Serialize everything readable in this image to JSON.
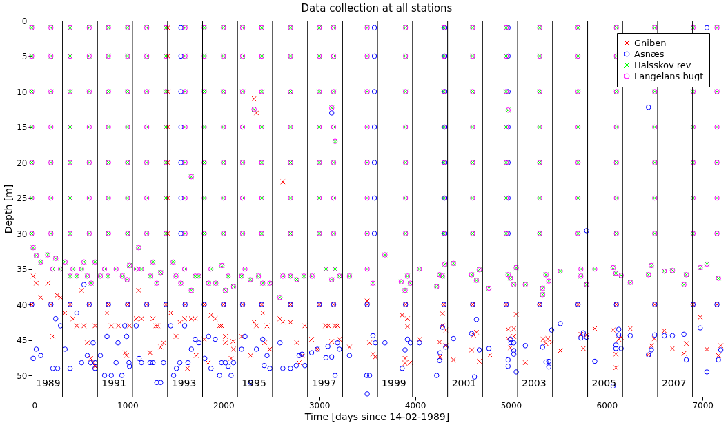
{
  "chart_data": {
    "type": "scatter",
    "title": "Data collection at all stations",
    "xlabel": "Time [days since 14-02-1989]",
    "ylabel": "Depth [m]",
    "xlim": [
      0,
      7200
    ],
    "xticks": [
      0,
      1000,
      2000,
      3000,
      4000,
      5000,
      6000,
      7000
    ],
    "ylim": [
      53,
      0
    ],
    "yticks": [
      0,
      5,
      10,
      15,
      20,
      25,
      30,
      35,
      40,
      45,
      50
    ],
    "grid": false,
    "legend": "top right",
    "series": [
      {
        "name": "Gniben",
        "color": "#ff0000",
        "marker": "cross",
        "x": [
          0,
          200,
          400,
          600,
          800,
          1000,
          1200,
          1400,
          1600,
          1800,
          2000,
          2200,
          2400,
          2700,
          3000,
          3150,
          3500,
          3900,
          4300,
          4600,
          4950,
          5300,
          5700,
          6100,
          6500,
          6900,
          7150,
          1420,
          1420,
          1420,
          1420,
          1420,
          1420,
          1420,
          15,
          47,
          94,
          167,
          220,
          265,
          300,
          348,
          430,
          470,
          520,
          545,
          580,
          615,
          640,
          660,
          660,
          785,
          830,
          905,
          975,
          990,
          1020,
          1090,
          1115,
          1145,
          1265,
          1295,
          1315,
          1345,
          1375,
          1235,
          1450,
          1505,
          1545,
          1595,
          1625,
          1665,
          1705,
          1715,
          1800,
          1840,
          1870,
          1915,
          1960,
          1980,
          2020,
          2020,
          2080,
          2100,
          2105,
          2190,
          2285,
          2320,
          2345,
          2320,
          2345,
          2410,
          2455,
          2430,
          2485,
          2590,
          2620,
          2700,
          2620,
          2765,
          2790,
          2820,
          2850,
          2920,
          2980,
          3065,
          3095,
          3130,
          3165,
          3190,
          3210,
          3315,
          3500,
          3525,
          3560,
          3585,
          3865,
          3920,
          3920,
          3895,
          3895,
          3950,
          4045,
          4255,
          4260,
          4285,
          4285,
          4320,
          4320,
          4400,
          4590,
          4610,
          4640,
          4670,
          4782,
          4970,
          4970,
          4995,
          5030,
          5030,
          5055,
          5150,
          5335,
          5365,
          5385,
          5425,
          5515,
          5730,
          5755,
          5790,
          5875,
          6065,
          6095,
          6095,
          6125,
          6150,
          6245,
          6435,
          6465,
          6495,
          6600,
          6685,
          6805,
          6830,
          6975,
          7045,
          7165,
          7190
        ],
        "values": [
          40,
          40,
          40,
          40,
          40,
          40,
          40,
          40,
          40,
          40,
          40,
          40,
          40,
          40,
          40,
          40,
          40,
          40,
          40,
          40,
          40,
          40,
          40,
          40,
          40,
          40,
          40,
          1,
          5,
          10,
          15,
          20,
          25,
          30,
          36,
          37,
          39,
          37,
          44.5,
          38.7,
          39,
          41.2,
          42,
          43,
          38,
          43,
          45.4,
          47.6,
          48.2,
          48.7,
          43,
          41.2,
          43,
          43,
          46.8,
          47.2,
          43,
          42,
          38,
          42,
          42,
          43,
          43,
          46,
          45.4,
          46.8,
          41.2,
          44.5,
          42.5,
          42,
          49,
          42,
          42,
          47.2,
          44.9,
          48.2,
          41.5,
          42,
          43,
          43,
          44.5,
          45.4,
          47.6,
          45.2,
          46.3,
          44.5,
          47.2,
          42.5,
          43,
          11,
          13,
          41.2,
          43,
          45.4,
          46.3,
          42,
          42.5,
          42.5,
          22.7,
          45.4,
          48.2,
          47.2,
          43,
          44.9,
          46.3,
          43,
          43,
          45.2,
          43,
          43,
          44.9,
          46,
          39.5,
          45.4,
          47,
          47.4,
          41.5,
          42,
          43.1,
          47.6,
          48.3,
          48.2,
          44.9,
          45.3,
          47.4,
          41.3,
          43,
          43.6,
          45.8,
          47.8,
          46.4,
          44.3,
          43.9,
          48,
          47.1,
          43.5,
          44.8,
          46.1,
          43.4,
          44.5,
          41.4,
          48.2,
          44.9,
          45.5,
          44.8,
          45.3,
          46.5,
          44.2,
          46.2,
          44.3,
          43.4,
          43.6,
          47,
          48.9,
          44.9,
          44.6,
          43.4,
          47.1,
          45.8,
          44.8,
          43.7,
          46.2,
          46.9,
          45.5,
          41.8,
          46.3,
          47.2,
          45.8
        ]
      },
      {
        "name": "Asnæs",
        "color": "#0000ff",
        "marker": "circle",
        "x": [
          0,
          200,
          400,
          600,
          800,
          1000,
          1200,
          1400,
          1600,
          1800,
          2000,
          2200,
          2400,
          2700,
          3000,
          3150,
          3500,
          3900,
          4300,
          4600,
          4950,
          5300,
          5700,
          6100,
          6500,
          6900,
          7150,
          1556,
          1556,
          1556,
          1556,
          1556,
          1556,
          1556,
          3575,
          3575,
          3575,
          3575,
          3575,
          3575,
          3575,
          4310,
          4310,
          4310,
          4310,
          4310,
          4310,
          4310,
          4970,
          4970,
          4970,
          4970,
          4970,
          4970,
          4970,
          3130,
          6435,
          5790,
          7045,
          15,
          47,
          94,
          220,
          270,
          250,
          300,
          348,
          400,
          470,
          520,
          545,
          580,
          615,
          640,
          660,
          660,
          716,
          760,
          785,
          830,
          880,
          900,
          940,
          970,
          990,
          1015,
          1020,
          1090,
          1120,
          1145,
          1235,
          1265,
          1305,
          1345,
          1375,
          1450,
          1480,
          1510,
          1545,
          1595,
          1630,
          1665,
          1705,
          1745,
          1805,
          1845,
          1870,
          1915,
          1960,
          1980,
          2020,
          2050,
          2080,
          2105,
          2190,
          2225,
          2285,
          2345,
          2410,
          2425,
          2455,
          2485,
          2590,
          2620,
          2700,
          2760,
          2790,
          2820,
          2850,
          2920,
          2980,
          3070,
          3090,
          3130,
          3165,
          3190,
          3210,
          3315,
          3495,
          3525,
          3500,
          3560,
          3585,
          3685,
          3865,
          3895,
          3920,
          3950,
          4045,
          4225,
          4255,
          4260,
          4285,
          4320,
          4400,
          4590,
          4620,
          4640,
          4670,
          4770,
          4970,
          4970,
          4995,
          5000,
          5030,
          5030,
          5030,
          5055,
          5150,
          5330,
          5365,
          5395,
          5395,
          5425,
          5515,
          5730,
          5755,
          5790,
          5875,
          6065,
          6095,
          6095,
          6125,
          6125,
          6150,
          6245,
          6435,
          6465,
          6500,
          6600,
          6685,
          6805,
          6830,
          6975,
          7045,
          7165,
          7190
        ],
        "values": [
          40,
          40,
          40,
          40,
          40,
          40,
          40,
          40,
          40,
          40,
          40,
          40,
          40,
          40,
          40,
          40,
          40,
          40,
          40,
          40,
          40,
          40,
          40,
          40,
          40,
          40,
          40,
          1,
          5,
          10,
          15,
          20,
          25,
          30,
          1,
          5,
          10,
          15,
          20,
          25,
          30,
          1,
          5,
          10,
          15,
          20,
          25,
          30,
          1,
          5,
          10,
          15,
          20,
          25,
          30,
          13,
          12.2,
          29.6,
          1,
          47.6,
          46.3,
          47.2,
          49,
          49,
          42,
          43,
          46.3,
          49,
          41.2,
          48.2,
          37.2,
          47.2,
          48.2,
          45.4,
          48.2,
          49,
          47.2,
          50,
          44.5,
          50,
          48.2,
          45.4,
          50,
          43,
          44.5,
          48.2,
          48.7,
          43,
          47.6,
          48.2,
          48.2,
          48.2,
          51,
          51,
          48.2,
          43,
          50,
          49,
          48.2,
          43,
          48.2,
          46.3,
          44.9,
          45.4,
          47.6,
          44.5,
          49,
          44.9,
          50,
          48.2,
          48.2,
          48.7,
          50,
          48.2,
          46.3,
          44.5,
          51,
          46.3,
          44.9,
          48.6,
          47.2,
          49,
          45.4,
          49,
          49,
          48.6,
          47.2,
          47,
          48.6,
          46.8,
          46.3,
          47.5,
          45.9,
          47.4,
          50,
          45.4,
          46.3,
          47.2,
          50,
          50,
          52.6,
          44.4,
          45.4,
          45.4,
          49,
          46.4,
          44.9,
          45.4,
          45.4,
          50,
          47.9,
          46.8,
          43.2,
          46,
          44.8,
          44.1,
          50.2,
          42.1,
          46.4,
          46.2,
          47.8,
          48.7,
          44.9,
          45.4,
          45.4,
          46.5,
          47,
          49.5,
          45.8,
          46,
          48.1,
          48,
          48.8,
          43.6,
          42.7,
          44.7,
          44,
          44.6,
          48,
          51.5,
          45.7,
          46.2,
          43.5,
          44.3,
          46.2,
          44.4,
          47.1,
          46.4,
          44.3,
          44.4,
          44.4,
          44.2,
          47.8,
          43.3,
          49.5,
          47.8,
          46.4
        ]
      },
      {
        "name": "Halsskov rev",
        "color": "#00ff00",
        "marker": "cross",
        "x": [
          0,
          200,
          400,
          600,
          800,
          1000,
          1200,
          1400,
          1600,
          1800,
          2000,
          2200,
          2400,
          2700,
          3000,
          3150,
          3500,
          3900,
          4300,
          4600,
          4950,
          5300,
          5700,
          6100,
          6500,
          6900,
          7150,
          0,
          200,
          400,
          600,
          800,
          1000,
          1200,
          1400,
          1600,
          1800,
          2000,
          2200,
          2400,
          2700,
          3000,
          3150,
          3500,
          3900,
          4300,
          4600,
          4950,
          5300,
          5700,
          6100,
          0,
          200,
          400,
          600,
          800,
          1000,
          1200,
          1400,
          1600,
          1800,
          2000,
          2200,
          2400,
          2700,
          3000,
          3150,
          3500,
          3900,
          4300,
          4600,
          4950,
          5300,
          5700,
          6100,
          6500,
          6900,
          7150,
          0,
          200,
          400,
          600,
          800,
          1000,
          1200,
          1400,
          1600,
          1800,
          2000,
          2200,
          2400,
          2700,
          3000,
          3150,
          3500,
          3900,
          4300,
          4600,
          4950,
          5300,
          5700,
          6100,
          6500,
          6900,
          7150,
          0,
          200,
          400,
          600,
          800,
          1000,
          1200,
          1400,
          1600,
          1800,
          2000,
          2200,
          2400,
          2700,
          3000,
          3150,
          3500,
          3900,
          4300,
          4600,
          4950,
          5300,
          5700,
          6100,
          6500,
          6900,
          7150,
          0,
          200,
          400,
          600,
          800,
          1000,
          1200,
          1400,
          1600,
          1800,
          2000,
          2200,
          2400,
          2700,
          3000,
          3150,
          3500,
          3900,
          4300,
          4600,
          4950,
          5300,
          5700,
          6100,
          6500,
          6900,
          7150,
          0,
          200,
          400,
          600,
          800,
          1000,
          1200,
          1400,
          1600,
          1800,
          2000,
          2200,
          2400,
          2700,
          3000,
          3150,
          3500,
          3900,
          4300,
          4600,
          4950,
          5300,
          5700,
          6100,
          6500,
          6900,
          7150,
          15,
          47,
          94,
          167,
          220,
          250,
          300,
          348,
          400,
          430,
          470,
          520,
          545,
          580,
          620,
          660,
          716,
          760,
          795,
          880,
          945,
          995,
          1020,
          1090,
          1115,
          1145,
          1235,
          1265,
          1305,
          1345,
          1475,
          1505,
          1555,
          1595,
          1665,
          1665,
          1705,
          1745,
          1845,
          1870,
          1920,
          1985,
          2020,
          2050,
          2105,
          2190,
          2225,
          2280,
          2320,
          2366,
          2410,
          2485,
          2590,
          2620,
          2700,
          2765,
          2840,
          2925,
          3070,
          3130,
          3165,
          3210,
          3130,
          3165,
          3315,
          3500,
          3560,
          3685,
          3855,
          3895,
          3920,
          3950,
          4045,
          4225,
          4255,
          4285,
          4310,
          4400,
          4590,
          4640,
          4670,
          4770,
          4970,
          4995,
          5030,
          5055,
          4970,
          5150,
          5330,
          5330,
          5365,
          5395,
          5515,
          5730,
          5730,
          5790,
          5875,
          6065,
          6095,
          6150,
          6245,
          6435,
          6465,
          6600,
          6685,
          6805,
          6830,
          6975,
          7045,
          7165
        ],
        "values": [
          1,
          1,
          1,
          1,
          1,
          1,
          1,
          1,
          1,
          1,
          1,
          1,
          1,
          1,
          1,
          1,
          1,
          1,
          1,
          1,
          1,
          1,
          1,
          1,
          1,
          1,
          1,
          5,
          5,
          5,
          5,
          5,
          5,
          5,
          5,
          5,
          5,
          5,
          5,
          5,
          5,
          5,
          5,
          5,
          5,
          5,
          5,
          5,
          5,
          5,
          5,
          10,
          10,
          10,
          10,
          10,
          10,
          10,
          10,
          10,
          10,
          10,
          10,
          10,
          10,
          10,
          10,
          10,
          10,
          10,
          10,
          10,
          10,
          10,
          10,
          10,
          10,
          10,
          15,
          15,
          15,
          15,
          15,
          15,
          15,
          15,
          15,
          15,
          15,
          15,
          15,
          15,
          15,
          15,
          15,
          15,
          15,
          15,
          15,
          15,
          15,
          15,
          15,
          15,
          15,
          20,
          20,
          20,
          20,
          20,
          20,
          20,
          20,
          20,
          20,
          20,
          20,
          20,
          20,
          20,
          20,
          20,
          20,
          20,
          20,
          20,
          20,
          20,
          20,
          20,
          20,
          20,
          25,
          25,
          25,
          25,
          25,
          25,
          25,
          25,
          25,
          25,
          25,
          25,
          25,
          25,
          25,
          25,
          25,
          25,
          25,
          25,
          25,
          25,
          25,
          25,
          25,
          25,
          25,
          30,
          30,
          30,
          30,
          30,
          30,
          30,
          30,
          30,
          30,
          30,
          30,
          30,
          30,
          30,
          30,
          30,
          30,
          30,
          30,
          30,
          30,
          30,
          30,
          30,
          30,
          30,
          32,
          33.1,
          34,
          33,
          35,
          33.5,
          35,
          34,
          36,
          35,
          36,
          35,
          34,
          36,
          37,
          34,
          36,
          35,
          36,
          35,
          36,
          36.5,
          34.5,
          35,
          32,
          35,
          36,
          34,
          37,
          35.5,
          34,
          36,
          37,
          35,
          38,
          22,
          36,
          36,
          37,
          35,
          37,
          34.5,
          38,
          36,
          37.5,
          36,
          35,
          36.5,
          12.5,
          36,
          37,
          37,
          39,
          36,
          36,
          36.5,
          36,
          36,
          35,
          36.5,
          35,
          36,
          12.3,
          17,
          36,
          35,
          37,
          33,
          36.8,
          38,
          36,
          37,
          35,
          37.5,
          35.8,
          36,
          34.3,
          34.2,
          35.8,
          36.6,
          35.1,
          37.7,
          35.8,
          36.3,
          37.2,
          34.8,
          12.6,
          37.2,
          37.7,
          38.6,
          35.8,
          36.7,
          35.3,
          35,
          36,
          37.2,
          35,
          34.8,
          35.6,
          35.9,
          36.9,
          35.8,
          34.5,
          35.3,
          35.2,
          37.2,
          35.8,
          34.8,
          34.3,
          36.3
        ]
      },
      {
        "name": "Langelans bugt",
        "color": "#ff00ff",
        "marker": "circle",
        "x": [
          0,
          200,
          400,
          600,
          800,
          1000,
          1200,
          1400,
          1600,
          1800,
          2000,
          2200,
          2400,
          2700,
          3000,
          3150,
          3500,
          3900,
          4300,
          4600,
          4950,
          5300,
          5700,
          6100,
          6500,
          6900,
          7150,
          0,
          200,
          400,
          600,
          800,
          1000,
          1200,
          1400,
          1600,
          1800,
          2000,
          2200,
          2400,
          2700,
          3000,
          3150,
          3500,
          3900,
          4300,
          4600,
          4950,
          5300,
          5700,
          6100,
          0,
          200,
          400,
          600,
          800,
          1000,
          1200,
          1400,
          1600,
          1800,
          2000,
          2200,
          2400,
          2700,
          3000,
          3150,
          3500,
          3900,
          4300,
          4600,
          4950,
          5300,
          5700,
          6100,
          6500,
          6900,
          7150,
          0,
          200,
          400,
          600,
          800,
          1000,
          1200,
          1400,
          1600,
          1800,
          2000,
          2200,
          2400,
          2700,
          3000,
          3150,
          3500,
          3900,
          4300,
          4600,
          4950,
          5300,
          5700,
          6100,
          6500,
          6900,
          7150,
          0,
          200,
          400,
          600,
          800,
          1000,
          1200,
          1400,
          1600,
          1800,
          2000,
          2200,
          2400,
          2700,
          3000,
          3150,
          3500,
          3900,
          4300,
          4600,
          4950,
          5300,
          5700,
          6100,
          6500,
          6900,
          7150,
          0,
          200,
          400,
          600,
          800,
          1000,
          1200,
          1400,
          1600,
          1800,
          2000,
          2200,
          2400,
          2700,
          3000,
          3150,
          3500,
          3900,
          4300,
          4600,
          4950,
          5300,
          5700,
          6100,
          6500,
          6900,
          7150,
          0,
          200,
          400,
          600,
          800,
          1000,
          1200,
          1400,
          1600,
          1800,
          2000,
          2200,
          2400,
          2700,
          3000,
          3150,
          3500,
          3900,
          4300,
          4600,
          4950,
          5300,
          5700,
          6100,
          6500,
          6900,
          7150,
          15,
          47,
          94,
          167,
          220,
          250,
          300,
          348,
          400,
          430,
          470,
          520,
          545,
          580,
          620,
          660,
          716,
          760,
          795,
          880,
          945,
          995,
          1020,
          1090,
          1115,
          1145,
          1235,
          1265,
          1305,
          1345,
          1475,
          1505,
          1555,
          1595,
          1665,
          1665,
          1705,
          1745,
          1845,
          1870,
          1920,
          1985,
          2020,
          2050,
          2105,
          2190,
          2225,
          2280,
          2320,
          2366,
          2410,
          2485,
          2590,
          2620,
          2700,
          2765,
          2840,
          2925,
          3070,
          3130,
          3165,
          3210,
          3130,
          3165,
          3315,
          3500,
          3560,
          3685,
          3855,
          3895,
          3920,
          3950,
          4045,
          4225,
          4255,
          4285,
          4310,
          4400,
          4590,
          4640,
          4670,
          4770,
          4970,
          4995,
          5030,
          5055,
          4970,
          5150,
          5330,
          5330,
          5365,
          5395,
          5515,
          5730,
          5730,
          5790,
          5875,
          6065,
          6095,
          6150,
          6245,
          6435,
          6465,
          6600,
          6685,
          6805,
          6830,
          6975,
          7045,
          7165
        ],
        "values": [
          1,
          1,
          1,
          1,
          1,
          1,
          1,
          1,
          1,
          1,
          1,
          1,
          1,
          1,
          1,
          1,
          1,
          1,
          1,
          1,
          1,
          1,
          1,
          1,
          1,
          1,
          1,
          5,
          5,
          5,
          5,
          5,
          5,
          5,
          5,
          5,
          5,
          5,
          5,
          5,
          5,
          5,
          5,
          5,
          5,
          5,
          5,
          5,
          5,
          5,
          5,
          10,
          10,
          10,
          10,
          10,
          10,
          10,
          10,
          10,
          10,
          10,
          10,
          10,
          10,
          10,
          10,
          10,
          10,
          10,
          10,
          10,
          10,
          10,
          10,
          10,
          10,
          10,
          15,
          15,
          15,
          15,
          15,
          15,
          15,
          15,
          15,
          15,
          15,
          15,
          15,
          15,
          15,
          15,
          15,
          15,
          15,
          15,
          15,
          15,
          15,
          15,
          15,
          15,
          15,
          20,
          20,
          20,
          20,
          20,
          20,
          20,
          20,
          20,
          20,
          20,
          20,
          20,
          20,
          20,
          20,
          20,
          20,
          20,
          20,
          20,
          20,
          20,
          20,
          20,
          20,
          20,
          25,
          25,
          25,
          25,
          25,
          25,
          25,
          25,
          25,
          25,
          25,
          25,
          25,
          25,
          25,
          25,
          25,
          25,
          25,
          25,
          25,
          25,
          25,
          25,
          25,
          25,
          25,
          30,
          30,
          30,
          30,
          30,
          30,
          30,
          30,
          30,
          30,
          30,
          30,
          30,
          30,
          30,
          30,
          30,
          30,
          30,
          30,
          30,
          30,
          30,
          30,
          30,
          30,
          30,
          32,
          33.1,
          34,
          33,
          35,
          33.5,
          35,
          34,
          36,
          35,
          36,
          35,
          34,
          36,
          37,
          34,
          36,
          35,
          36,
          35,
          36,
          36.5,
          34.5,
          35,
          32,
          35,
          36,
          34,
          37,
          35.5,
          34,
          36,
          37,
          35,
          38,
          22,
          36,
          36,
          37,
          35,
          37,
          34.5,
          38,
          36,
          37.5,
          36,
          35,
          36.5,
          12.5,
          36,
          37,
          37,
          39,
          36,
          36,
          36.5,
          36,
          36,
          35,
          36.5,
          35,
          36,
          12.3,
          17,
          36,
          35,
          37,
          33,
          36.8,
          38,
          36,
          37,
          35,
          37.5,
          35.8,
          36,
          34.3,
          34.2,
          35.8,
          36.6,
          35.1,
          37.7,
          35.8,
          36.3,
          37.2,
          34.8,
          12.6,
          37.2,
          37.7,
          38.6,
          35.8,
          36.7,
          35.3,
          35,
          36,
          37.2,
          35,
          34.8,
          35.6,
          35.9,
          36.9,
          35.8,
          34.5,
          35.3,
          35.2,
          37.2,
          35.8,
          34.8,
          34.3,
          36.3
        ]
      }
    ],
    "ref_lines": [
      {
        "axis": "x",
        "value": 321,
        "color": "#000000"
      },
      {
        "axis": "x",
        "value": 686,
        "color": "#000000"
      },
      {
        "axis": "x",
        "value": 1051,
        "color": "#000000"
      },
      {
        "axis": "x",
        "value": 1417,
        "color": "#000000"
      },
      {
        "axis": "x",
        "value": 1782,
        "color": "#000000"
      },
      {
        "axis": "x",
        "value": 2147,
        "color": "#000000"
      },
      {
        "axis": "x",
        "value": 2512,
        "color": "#000000"
      },
      {
        "axis": "x",
        "value": 2878,
        "color": "#000000"
      },
      {
        "axis": "x",
        "value": 3243,
        "color": "#000000"
      },
      {
        "axis": "x",
        "value": 3608,
        "color": "#000000"
      },
      {
        "axis": "x",
        "value": 3973,
        "color": "#000000"
      },
      {
        "axis": "x",
        "value": 4339,
        "color": "#000000"
      },
      {
        "axis": "x",
        "value": 4704,
        "color": "#000000"
      },
      {
        "axis": "x",
        "value": 5069,
        "color": "#000000"
      },
      {
        "axis": "x",
        "value": 5434,
        "color": "#000000"
      },
      {
        "axis": "x",
        "value": 5800,
        "color": "#000000"
      },
      {
        "axis": "x",
        "value": 6165,
        "color": "#000000"
      },
      {
        "axis": "x",
        "value": 6530,
        "color": "#000000"
      },
      {
        "axis": "x",
        "value": 6895,
        "color": "#000000"
      }
    ],
    "annotations": [
      "1989",
      "1991",
      "1993",
      "1995",
      "1997",
      "1999",
      "2001",
      "2003",
      "2005",
      "2007"
    ]
  }
}
